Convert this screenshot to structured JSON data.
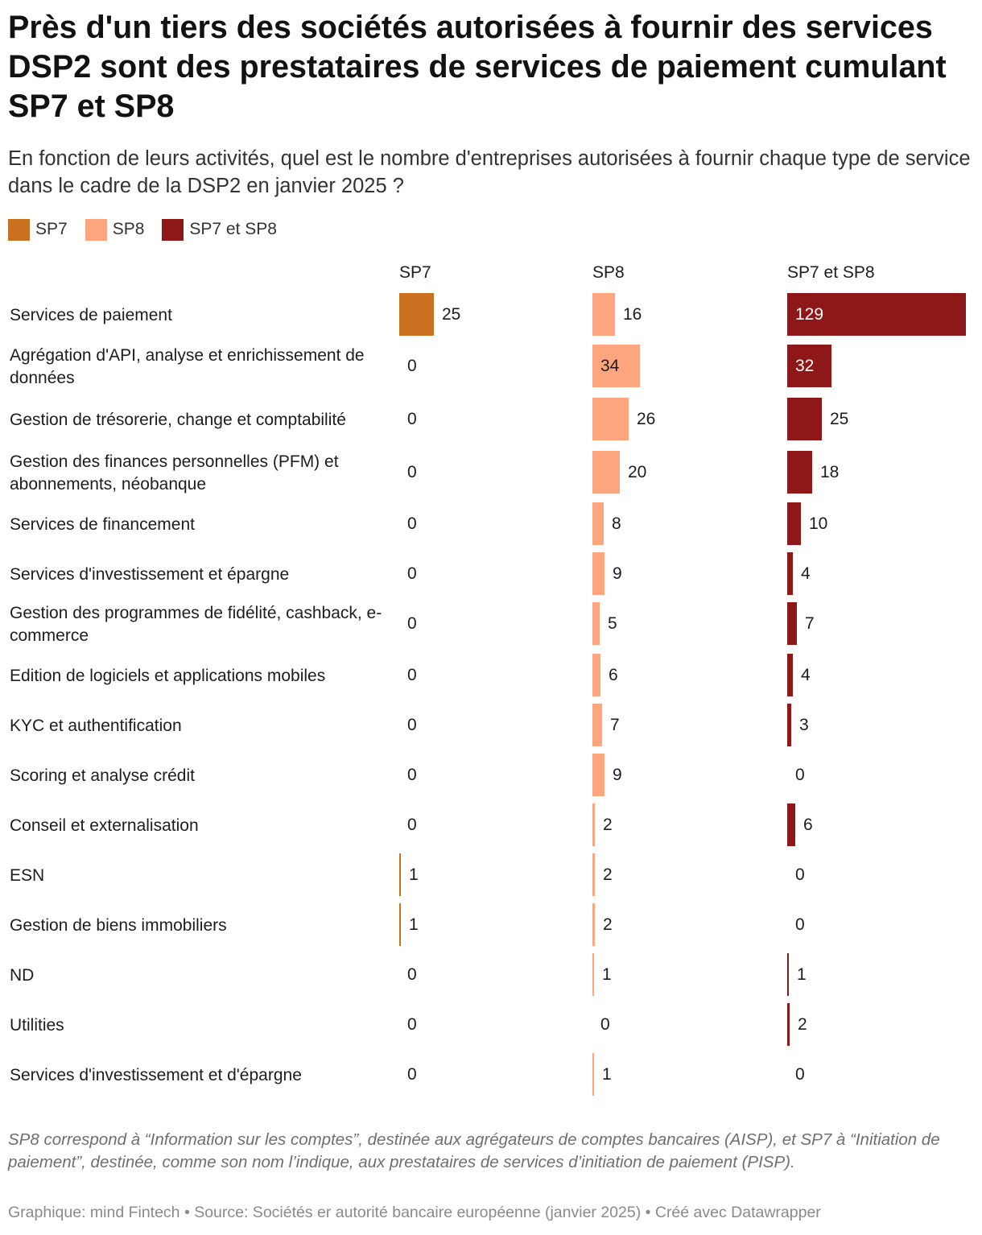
{
  "title": "Près d'un tiers des sociétés autorisées à fournir des services DSP2 sont des prestataires de services de paiement cumulant SP7 et SP8",
  "subtitle": "En fonction de leurs activités, quel est le nombre d'entreprises autorisées à fournir chaque type de service dans le cadre de la DSP2  en janvier 2025 ?",
  "legend": [
    {
      "label": "SP7",
      "color": "#c97120"
    },
    {
      "label": "SP8",
      "color": "#fda57f"
    },
    {
      "label": "SP7 et SP8",
      "color": "#8e1818"
    }
  ],
  "notes": "SP8 correspond à “Information sur les comptes”, destinée aux agrégateurs de comptes bancaires (AISP), et SP7 à “Initiation de paiement”, destinée, comme son nom l’indique, aux prestataires de services d’initiation de paiement (PISP).",
  "credits": "Graphique: mind Fintech • Source: Sociétés er autorité bancaire européenne (janvier 2025) • Créé avec Datawrapper",
  "chart_data": {
    "type": "bar",
    "orientation": "horizontal",
    "layout": "split-bars",
    "title": "Près d'un tiers des sociétés autorisées à fournir des services DSP2 sont des prestataires de services de paiement cumulant SP7 et SP8",
    "categories": [
      "Services de paiement",
      "Agrégation d'API, analyse et enrichissement de données",
      "Gestion de trésorerie, change et comptabilité",
      "Gestion des finances personnelles (PFM) et abonnements, néobanque",
      "Services de financement",
      "Services d'investissement et épargne",
      "Gestion des programmes de fidélité, cashback, e-commerce",
      "Edition de logiciels et applications mobiles",
      "KYC et authentification",
      "Scoring et analyse crédit",
      "Conseil et externalisation",
      "ESN",
      "Gestion de biens immobiliers",
      "ND",
      "Utilities",
      "Services d'investissement et d'épargne"
    ],
    "series": [
      {
        "name": "SP7",
        "color": "#c97120",
        "values": [
          25,
          0,
          0,
          0,
          0,
          0,
          0,
          0,
          0,
          0,
          0,
          1,
          1,
          0,
          0,
          0
        ]
      },
      {
        "name": "SP8",
        "color": "#fda57f",
        "values": [
          16,
          34,
          26,
          20,
          8,
          9,
          5,
          6,
          7,
          9,
          2,
          2,
          2,
          1,
          0,
          1
        ]
      },
      {
        "name": "SP7 et SP8",
        "color": "#8e1818",
        "values": [
          129,
          32,
          25,
          18,
          10,
          4,
          7,
          4,
          3,
          0,
          6,
          0,
          0,
          1,
          2,
          0
        ]
      }
    ],
    "xlim": [
      0,
      129
    ],
    "legend_position": "top-left",
    "grid": false
  }
}
